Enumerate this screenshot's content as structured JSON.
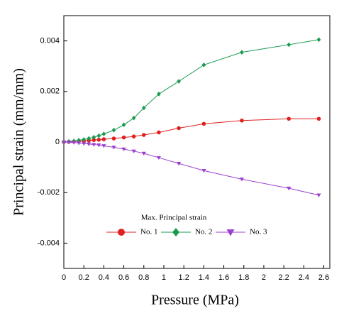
{
  "chart_data": {
    "type": "line",
    "xlabel": "Pressure (MPa)",
    "ylabel": "Principal strain (mm/mm)",
    "legend_title": "Max. Principal strain",
    "x": [
      0,
      0.05,
      0.1,
      0.15,
      0.2,
      0.25,
      0.3,
      0.35,
      0.4,
      0.5,
      0.6,
      0.7,
      0.8,
      0.95,
      1.15,
      1.4,
      1.78,
      2.25,
      2.55
    ],
    "series": [
      {
        "name": "No. 1",
        "color": "#e02020",
        "marker": "circle",
        "values": [
          0,
          1e-05,
          2e-05,
          3e-05,
          5e-05,
          6e-05,
          8e-05,
          9e-05,
          0.00011,
          0.00014,
          0.00018,
          0.00022,
          0.00028,
          0.00038,
          0.00055,
          0.00072,
          0.00085,
          0.00092,
          0.00092
        ]
      },
      {
        "name": "No. 2",
        "color": "#1a9a50",
        "marker": "diamond",
        "values": [
          0,
          2e-05,
          4e-05,
          7e-05,
          0.0001,
          0.00014,
          0.00019,
          0.00025,
          0.00032,
          0.00047,
          0.00068,
          0.00095,
          0.00135,
          0.0019,
          0.0024,
          0.00305,
          0.00355,
          0.00385,
          0.00405
        ]
      },
      {
        "name": "No. 3",
        "color": "#9b40d0",
        "marker": "triangle-down",
        "values": [
          0,
          -1e-05,
          -2e-05,
          -4e-05,
          -6e-05,
          -8e-05,
          -0.0001,
          -0.00012,
          -0.00015,
          -0.00021,
          -0.00028,
          -0.00036,
          -0.00045,
          -0.00062,
          -0.00085,
          -0.00113,
          -0.00147,
          -0.00183,
          -0.0021
        ]
      }
    ],
    "xlim": [
      0,
      2.66
    ],
    "xticks": [
      0,
      0.2,
      0.4,
      0.6,
      0.8,
      1,
      1.2,
      1.4,
      1.6,
      1.8,
      2,
      2.2,
      2.4,
      2.6
    ],
    "ylim": [
      -0.005,
      0.005
    ],
    "yticks": [
      -0.004,
      -0.002,
      0,
      0.002,
      0.004
    ],
    "grid": false
  }
}
